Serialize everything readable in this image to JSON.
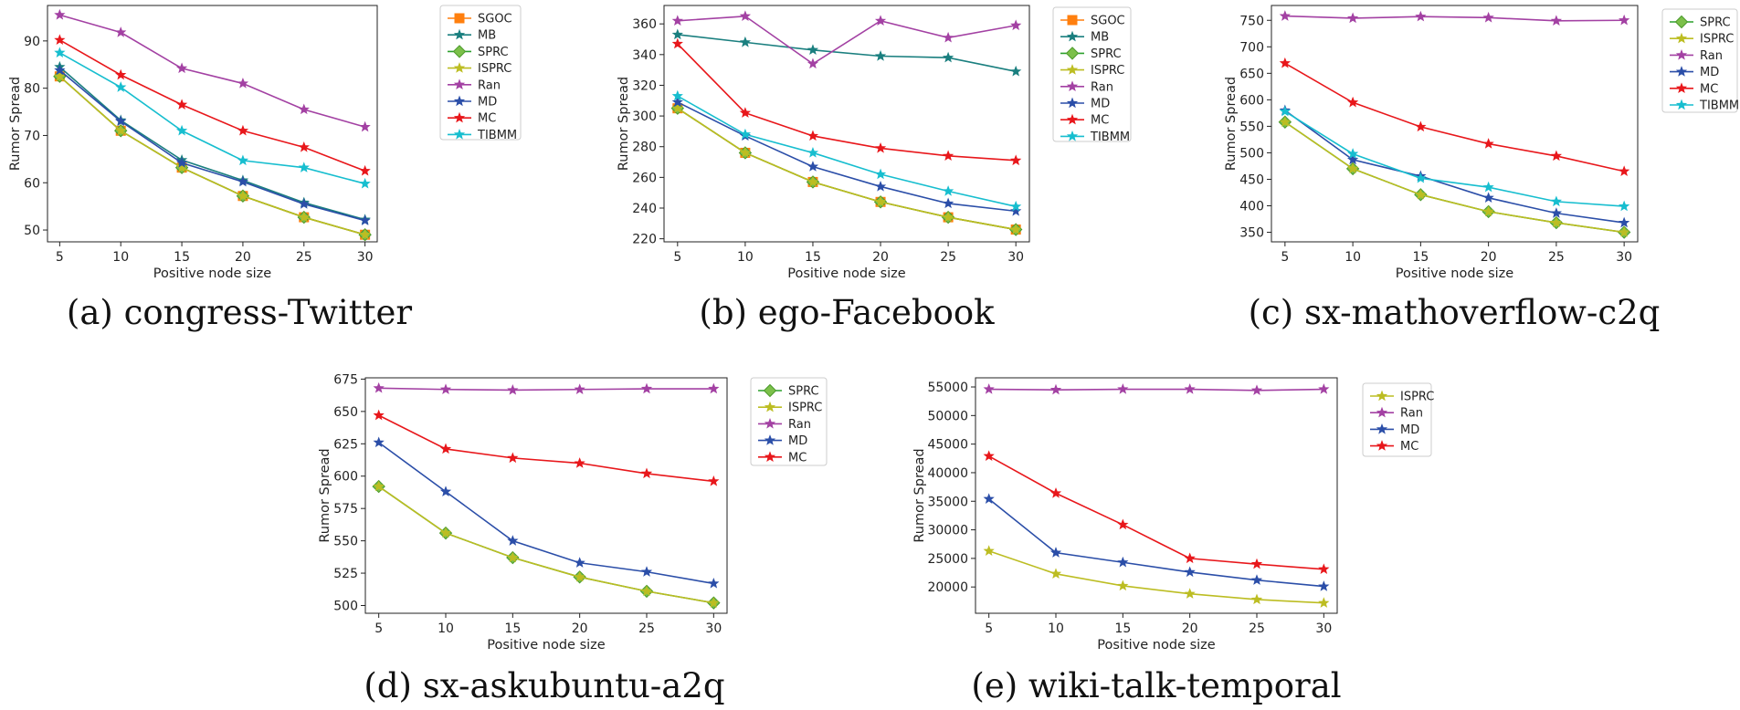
{
  "chart_data": [
    {
      "type": "line",
      "caption": "(a) congress-Twitter",
      "xlabel": "Positive node size",
      "ylabel": "Rumor Spread",
      "x": [
        5,
        10,
        15,
        20,
        25,
        30
      ],
      "xticks": [
        5,
        10,
        15,
        20,
        25,
        30
      ],
      "xlim": [
        4.0,
        31.0
      ],
      "yticks": [
        50,
        60,
        70,
        80,
        90
      ],
      "ytick_labels": [
        "50",
        "60",
        "70",
        "80",
        "90"
      ],
      "ylim": [
        47.5,
        97.5
      ],
      "legend_position": "outside-right",
      "series": [
        {
          "name": "SGOC",
          "color": "#ff7f0e",
          "marker": "square",
          "values": [
            82.5,
            71.0,
            63.2,
            57.2,
            52.7,
            49.0
          ]
        },
        {
          "name": "MB",
          "color": "#1a7f7f",
          "marker": "star",
          "values": [
            84.5,
            73.2,
            64.8,
            60.5,
            55.8,
            52.2
          ]
        },
        {
          "name": "SPRC",
          "color": "#2ca02c",
          "marker": "diamond",
          "values": [
            82.5,
            71.0,
            63.2,
            57.2,
            52.7,
            49.0
          ]
        },
        {
          "name": "ISPRC",
          "color": "#bcbd22",
          "marker": "star",
          "values": [
            82.5,
            71.0,
            63.2,
            57.2,
            52.7,
            49.0
          ]
        },
        {
          "name": "Ran",
          "color": "#a341a3",
          "marker": "star",
          "values": [
            95.5,
            91.8,
            84.2,
            81.0,
            75.5,
            71.8
          ]
        },
        {
          "name": "MD",
          "color": "#2b4ea8",
          "marker": "star",
          "values": [
            83.8,
            73.0,
            64.2,
            60.2,
            55.5,
            52.0
          ]
        },
        {
          "name": "MC",
          "color": "#e8171b",
          "marker": "star",
          "values": [
            90.2,
            82.8,
            76.5,
            71.0,
            67.5,
            62.5
          ]
        },
        {
          "name": "TIBMM",
          "color": "#17becf",
          "marker": "star",
          "values": [
            87.5,
            80.2,
            71.0,
            64.7,
            63.2,
            59.8
          ]
        }
      ]
    },
    {
      "type": "line",
      "caption": "(b) ego-Facebook",
      "xlabel": "Positive node size",
      "ylabel": "Rumor Spread",
      "x": [
        5,
        10,
        15,
        20,
        25,
        30
      ],
      "xticks": [
        5,
        10,
        15,
        20,
        25,
        30
      ],
      "xlim": [
        4.0,
        31.0
      ],
      "yticks": [
        220,
        240,
        260,
        280,
        300,
        320,
        340,
        360
      ],
      "ytick_labels": [
        "220",
        "240",
        "260",
        "280",
        "300",
        "320",
        "340",
        "360"
      ],
      "ylim": [
        218,
        372
      ],
      "legend_position": "outside-right",
      "series": [
        {
          "name": "SGOC",
          "color": "#ff7f0e",
          "marker": "square",
          "values": [
            305,
            276,
            257,
            244,
            234,
            226
          ]
        },
        {
          "name": "MB",
          "color": "#1a7f7f",
          "marker": "star",
          "values": [
            353,
            348,
            343,
            339,
            338,
            329
          ]
        },
        {
          "name": "SPRC",
          "color": "#2ca02c",
          "marker": "diamond",
          "values": [
            305,
            276,
            257,
            244,
            234,
            226
          ]
        },
        {
          "name": "ISPRC",
          "color": "#bcbd22",
          "marker": "star",
          "values": [
            305,
            276,
            257,
            244,
            234,
            226
          ]
        },
        {
          "name": "Ran",
          "color": "#a341a3",
          "marker": "star",
          "values": [
            362,
            365,
            334,
            362,
            351,
            359
          ]
        },
        {
          "name": "MD",
          "color": "#2b4ea8",
          "marker": "star",
          "values": [
            309,
            287,
            267,
            254,
            243,
            238
          ]
        },
        {
          "name": "MC",
          "color": "#e8171b",
          "marker": "star",
          "values": [
            347,
            302,
            287,
            279,
            274,
            271
          ]
        },
        {
          "name": "TIBMM",
          "color": "#17becf",
          "marker": "star",
          "values": [
            313,
            288,
            276,
            262,
            251,
            241
          ]
        }
      ]
    },
    {
      "type": "line",
      "caption": "(c) sx-mathoverflow-c2q",
      "xlabel": "Positive node size",
      "ylabel": "Rumor Spread",
      "x": [
        5,
        10,
        15,
        20,
        25,
        30
      ],
      "xticks": [
        5,
        10,
        15,
        20,
        25,
        30
      ],
      "xlim": [
        4.0,
        31.0
      ],
      "yticks": [
        350,
        400,
        450,
        500,
        550,
        600,
        650,
        700,
        750
      ],
      "ytick_labels": [
        "350",
        "400",
        "450",
        "500",
        "550",
        "600",
        "650",
        "700",
        "750"
      ],
      "ylim": [
        332,
        778
      ],
      "legend_position": "outside-right",
      "series": [
        {
          "name": "SPRC",
          "color": "#2ca02c",
          "marker": "diamond",
          "values": [
            558,
            470,
            421,
            389,
            368,
            350
          ]
        },
        {
          "name": "ISPRC",
          "color": "#bcbd22",
          "marker": "star",
          "values": [
            558,
            470,
            421,
            389,
            368,
            350
          ]
        },
        {
          "name": "Ran",
          "color": "#a341a3",
          "marker": "star",
          "values": [
            758,
            754,
            757,
            755,
            749,
            750
          ]
        },
        {
          "name": "MD",
          "color": "#2b4ea8",
          "marker": "star",
          "values": [
            580,
            487,
            456,
            415,
            386,
            368
          ]
        },
        {
          "name": "MC",
          "color": "#e8171b",
          "marker": "star",
          "values": [
            669,
            595,
            549,
            517,
            494,
            465
          ]
        },
        {
          "name": "TIBMM",
          "color": "#17becf",
          "marker": "star",
          "values": [
            578,
            498,
            452,
            435,
            408,
            399
          ]
        }
      ]
    },
    {
      "type": "line",
      "caption": "(d) sx-askubuntu-a2q",
      "xlabel": "Positive node size",
      "ylabel": "Rumor Spread",
      "x": [
        5,
        10,
        15,
        20,
        25,
        30
      ],
      "xticks": [
        5,
        10,
        15,
        20,
        25,
        30
      ],
      "xlim": [
        4.0,
        31.0
      ],
      "yticks": [
        500,
        525,
        550,
        575,
        600,
        625,
        650,
        675
      ],
      "ytick_labels": [
        "500",
        "525",
        "550",
        "575",
        "600",
        "625",
        "650",
        "675"
      ],
      "ylim": [
        494,
        676
      ],
      "legend_position": "outside-right",
      "series": [
        {
          "name": "SPRC",
          "color": "#2ca02c",
          "marker": "diamond",
          "values": [
            592,
            556,
            537,
            522,
            511,
            502
          ]
        },
        {
          "name": "ISPRC",
          "color": "#bcbd22",
          "marker": "star",
          "values": [
            592,
            556,
            537,
            522,
            511,
            502
          ]
        },
        {
          "name": "Ran",
          "color": "#a341a3",
          "marker": "star",
          "values": [
            668,
            667,
            666.5,
            667,
            667.5,
            667.5
          ]
        },
        {
          "name": "MD",
          "color": "#2b4ea8",
          "marker": "star",
          "values": [
            626,
            588,
            550,
            533,
            526,
            517
          ]
        },
        {
          "name": "MC",
          "color": "#e8171b",
          "marker": "star",
          "values": [
            647,
            621,
            614,
            610,
            602,
            596
          ]
        }
      ]
    },
    {
      "type": "line",
      "caption": "(e) wiki-talk-temporal",
      "xlabel": "Positive node size",
      "ylabel": "Rumor Spread",
      "x": [
        5,
        10,
        15,
        20,
        25,
        30
      ],
      "xticks": [
        5,
        10,
        15,
        20,
        25,
        30
      ],
      "xlim": [
        4.0,
        31.0
      ],
      "yticks": [
        20000,
        25000,
        30000,
        35000,
        40000,
        45000,
        50000,
        55000
      ],
      "ytick_labels": [
        "20000",
        "25000",
        "30000",
        "35000",
        "40000",
        "45000",
        "50000",
        "55000"
      ],
      "ylim": [
        15400,
        56600
      ],
      "legend_position": "outside-right",
      "series": [
        {
          "name": "ISPRC",
          "color": "#bcbd22",
          "marker": "star",
          "values": [
            26300,
            22300,
            20200,
            18800,
            17800,
            17200
          ]
        },
        {
          "name": "Ran",
          "color": "#a341a3",
          "marker": "star",
          "values": [
            54600,
            54500,
            54600,
            54600,
            54400,
            54600
          ]
        },
        {
          "name": "MD",
          "color": "#2b4ea8",
          "marker": "star",
          "values": [
            35400,
            26000,
            24300,
            22600,
            21200,
            20100
          ]
        },
        {
          "name": "MC",
          "color": "#e8171b",
          "marker": "star",
          "values": [
            42900,
            36400,
            30900,
            25000,
            24000,
            23100
          ]
        }
      ]
    }
  ]
}
